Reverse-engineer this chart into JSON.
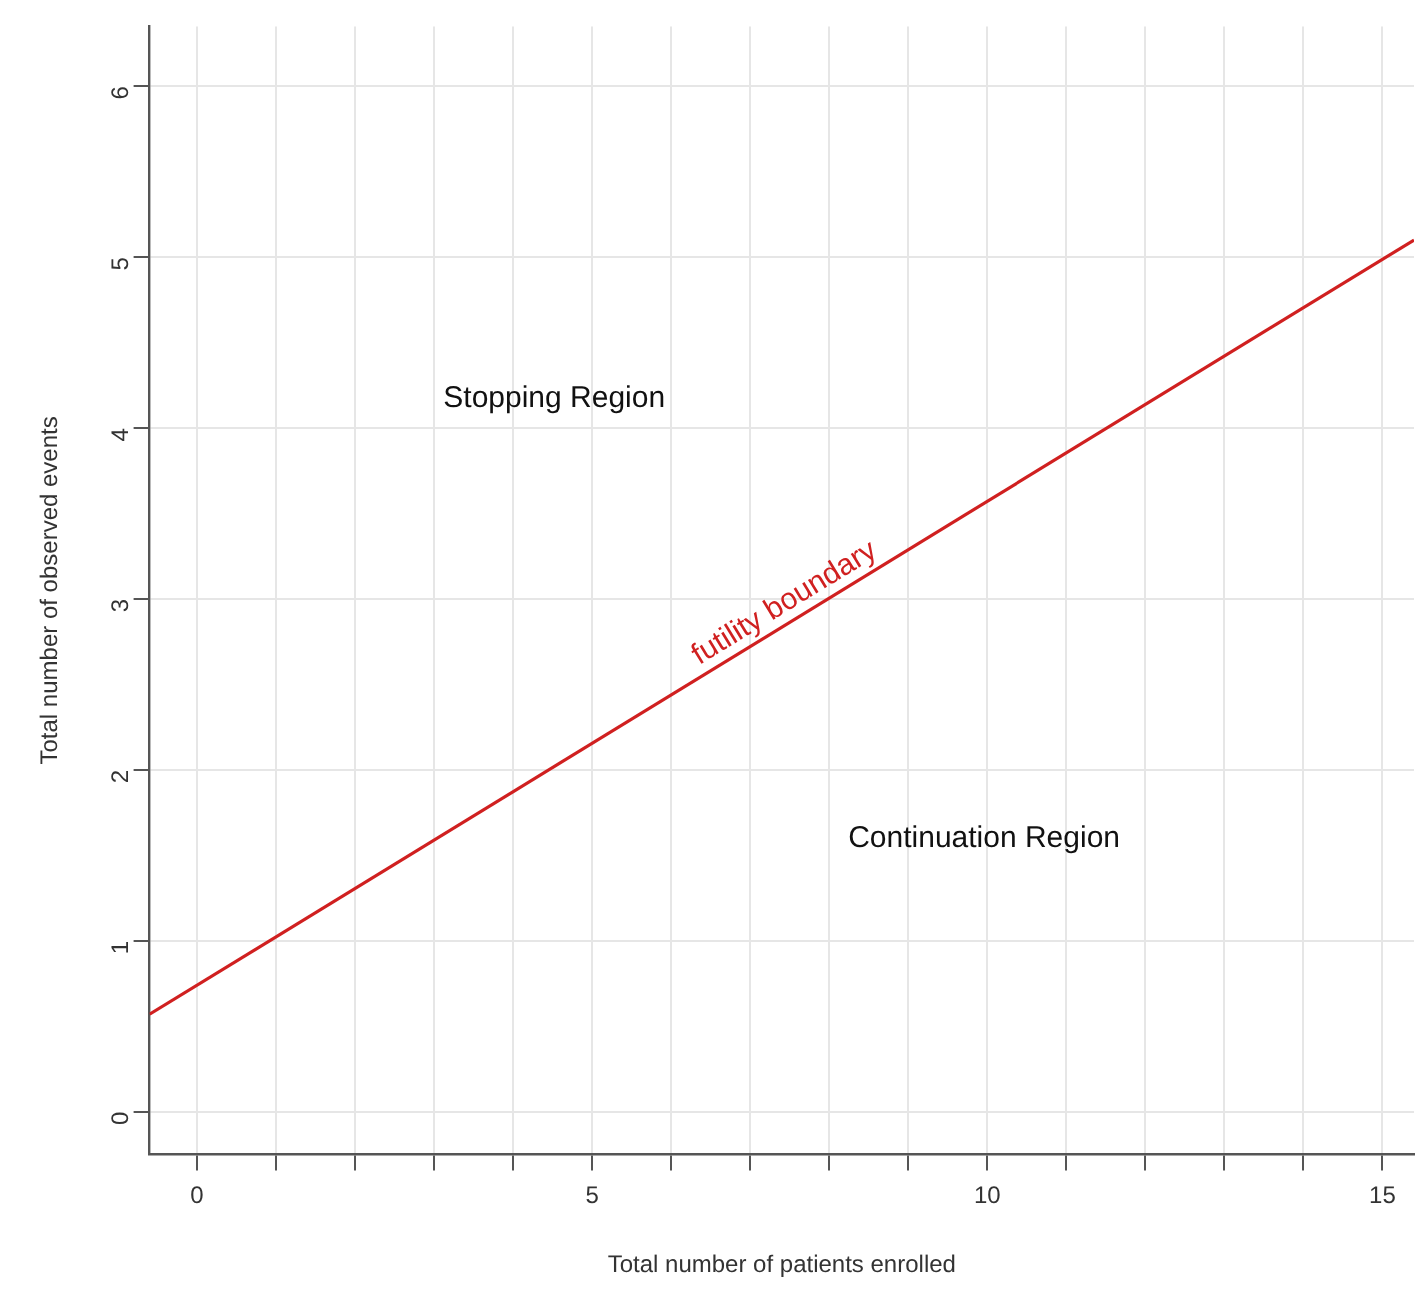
{
  "chart_data": {
    "type": "line",
    "xlabel": "Total number of patients enrolled",
    "ylabel": "Total number of observed events",
    "series": [
      {
        "color": "#d02020",
        "x": [
          -0.6,
          15.4
        ],
        "values": [
          0.57,
          5.1
        ]
      }
    ],
    "xlim": [
      -0.6,
      15.4
    ],
    "ylim": [
      -0.25,
      6.35
    ],
    "xticks": [
      0,
      {
        "value": 1,
        "label": null
      },
      {
        "value": 2,
        "label": null
      },
      {
        "value": 3,
        "label": null
      },
      {
        "value": 4,
        "label": null
      },
      5,
      {
        "value": 6,
        "label": null
      },
      {
        "value": 7,
        "label": null
      },
      {
        "value": 8,
        "label": null
      },
      {
        "value": 9,
        "label": null
      },
      10,
      {
        "value": 11,
        "label": null
      },
      {
        "value": 12,
        "label": null
      },
      {
        "value": 13,
        "label": null
      },
      {
        "value": 14,
        "label": null
      },
      15
    ],
    "yticks": [
      0,
      1,
      2,
      3,
      4,
      5,
      6
    ],
    "grid": true,
    "marker": "none",
    "line_style": "solid",
    "annotations": [
      "Stopping Region",
      "Continuation Region",
      "futility boundary"
    ]
  }
}
